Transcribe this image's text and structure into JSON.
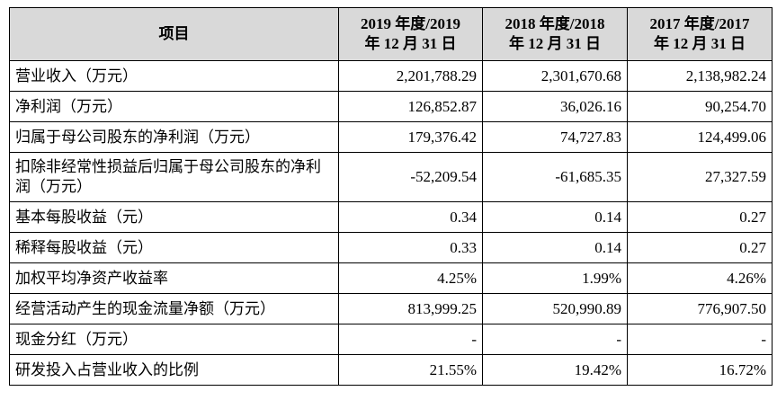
{
  "table": {
    "headers": [
      "项目",
      "2019年度/2019年12月31日",
      "2018年度/2018年12月31日",
      "2017年度/2017年12月31日"
    ],
    "header_lines": [
      [
        "项目"
      ],
      [
        "2019 年度/2019",
        "年 12 月 31 日"
      ],
      [
        "2018 年度/2018",
        "年 12 月 31 日"
      ],
      [
        "2017 年度/2017",
        "年 12 月 31 日"
      ]
    ],
    "rows": [
      {
        "label": "营业收入（万元）",
        "values": [
          "2,201,788.29",
          "2,301,670.68",
          "2,138,982.24"
        ]
      },
      {
        "label": "净利润（万元）",
        "values": [
          "126,852.87",
          "36,026.16",
          "90,254.70"
        ]
      },
      {
        "label": "归属于母公司股东的净利润（万元）",
        "values": [
          "179,376.42",
          "74,727.83",
          "124,499.06"
        ]
      },
      {
        "label": "扣除非经常性损益后归属于母公司股东的净利润（万元）",
        "values": [
          "-52,209.54",
          "-61,685.35",
          "27,327.59"
        ]
      },
      {
        "label": "基本每股收益（元）",
        "values": [
          "0.34",
          "0.14",
          "0.27"
        ]
      },
      {
        "label": "稀释每股收益（元）",
        "values": [
          "0.33",
          "0.14",
          "0.27"
        ]
      },
      {
        "label": "加权平均净资产收益率",
        "values": [
          "4.25%",
          "1.99%",
          "4.26%"
        ]
      },
      {
        "label": "经营活动产生的现金流量净额（万元）",
        "values": [
          "813,999.25",
          "520,990.89",
          "776,907.50"
        ]
      },
      {
        "label": "现金分红（万元）",
        "values": [
          "-",
          "-",
          "-"
        ]
      },
      {
        "label": "研发投入占营业收入的比例",
        "values": [
          "21.55%",
          "19.42%",
          "16.72%"
        ]
      }
    ],
    "header_bg": "#d9d9d9"
  }
}
